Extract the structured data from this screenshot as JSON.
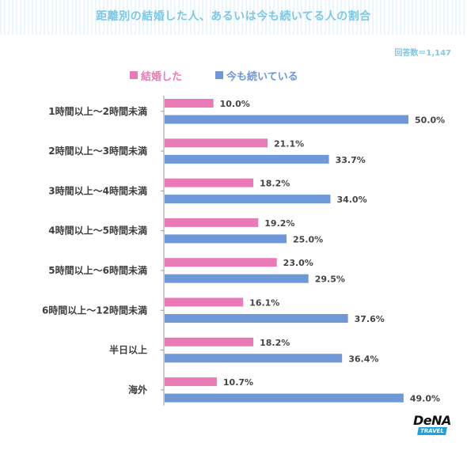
{
  "title": "距離別の結婚した人、あるいは今も続いてる人の割合",
  "sample_note": "回答数＝1,147",
  "colors": {
    "married": "#ea7ab7",
    "continuing": "#6e98d8",
    "title": "#7ec8e6"
  },
  "logo": {
    "name": "DeNA",
    "sub": "TRAVEL"
  },
  "chart_data": {
    "type": "bar",
    "orientation": "horizontal",
    "title": "距離別の結婚した人、あるいは今も続いてる人の割合",
    "xlabel": "",
    "ylabel": "",
    "xlim": [
      0,
      50
    ],
    "grid": false,
    "legend_position": "top",
    "value_suffix": "%",
    "categories": [
      "1時間以上〜2時間未満",
      "2時間以上〜3時間未満",
      "3時間以上〜4時間未満",
      "4時間以上〜5時間未満",
      "5時間以上〜6時間未満",
      "6時間以上〜12時間未満",
      "半日以上",
      "海外"
    ],
    "series": [
      {
        "name": "結婚した",
        "color": "#ea7ab7",
        "values": [
          10.0,
          21.1,
          18.2,
          19.2,
          23.0,
          16.1,
          18.2,
          10.7
        ]
      },
      {
        "name": "今も続いている",
        "color": "#6e98d8",
        "values": [
          50.0,
          33.7,
          34.0,
          25.0,
          29.5,
          37.6,
          36.4,
          49.0
        ]
      }
    ]
  }
}
